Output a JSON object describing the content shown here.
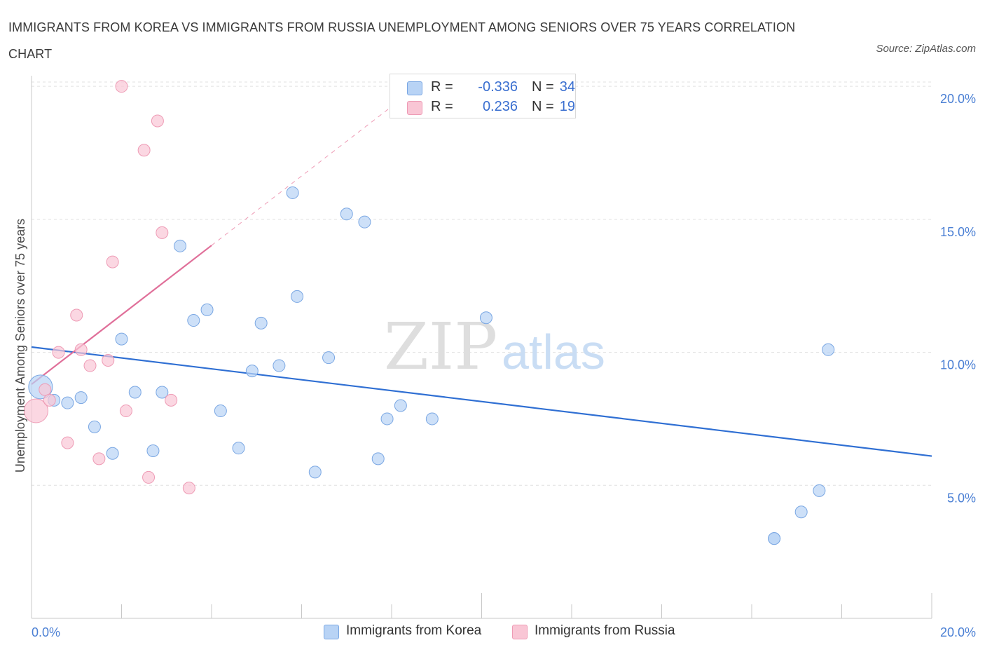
{
  "title": "IMMIGRANTS FROM KOREA VS IMMIGRANTS FROM RUSSIA UNEMPLOYMENT AMONG SENIORS OVER 75 YEARS CORRELATION CHART",
  "source": "Source: ZipAtlas.com",
  "watermark": {
    "zip": "ZIP",
    "atlas": "atlas"
  },
  "legend": {
    "korea": {
      "r_label": "R =",
      "r_value": "-0.336",
      "n_label": "N =",
      "n_value": "34"
    },
    "russia": {
      "r_label": "R =",
      "r_value": "0.236",
      "n_label": "N =",
      "n_value": "19"
    }
  },
  "colors": {
    "korea_fill": "#b8d3f5",
    "korea_stroke": "#7aa7e3",
    "korea_line": "#2f6fd3",
    "russia_fill": "#f9c6d5",
    "russia_stroke": "#ee9bb5",
    "russia_line": "#e0709a",
    "grid": "#e0e0e0",
    "tick_text": "#4a7fd4"
  },
  "chart_data": {
    "type": "scatter",
    "title": "IMMIGRANTS FROM KOREA VS IMMIGRANTS FROM RUSSIA UNEMPLOYMENT AMONG SENIORS OVER 75 YEARS CORRELATION CHART",
    "xlabel": "",
    "ylabel": "Unemployment Among Seniors over 75 years",
    "xlim": [
      0,
      20
    ],
    "ylim": [
      0,
      20.4
    ],
    "x_tick_labels": [
      "0.0%",
      "20.0%"
    ],
    "y_ticks": [
      5,
      10,
      15,
      20
    ],
    "y_tick_labels": [
      "5.0%",
      "10.0%",
      "15.0%",
      "20.0%"
    ],
    "grid": true,
    "legend_position": "bottom-center",
    "series": [
      {
        "name": "Immigrants from Korea",
        "r": -0.336,
        "n": 34,
        "trend": {
          "x0": 0.0,
          "y0": 10.2,
          "x1": 20.0,
          "y1": 6.1,
          "solid_to": 20.0
        },
        "points": [
          {
            "x": 0.2,
            "y": 8.7,
            "s": "large"
          },
          {
            "x": 0.5,
            "y": 8.2
          },
          {
            "x": 0.8,
            "y": 8.1
          },
          {
            "x": 1.1,
            "y": 8.3
          },
          {
            "x": 1.4,
            "y": 7.2
          },
          {
            "x": 1.8,
            "y": 6.2
          },
          {
            "x": 2.0,
            "y": 10.5
          },
          {
            "x": 2.3,
            "y": 8.5
          },
          {
            "x": 2.7,
            "y": 6.3
          },
          {
            "x": 2.9,
            "y": 8.5
          },
          {
            "x": 3.3,
            "y": 14.0
          },
          {
            "x": 3.6,
            "y": 11.2
          },
          {
            "x": 3.9,
            "y": 11.6
          },
          {
            "x": 4.2,
            "y": 7.8
          },
          {
            "x": 4.6,
            "y": 6.4
          },
          {
            "x": 4.9,
            "y": 9.3
          },
          {
            "x": 5.1,
            "y": 11.1
          },
          {
            "x": 5.5,
            "y": 9.5
          },
          {
            "x": 5.8,
            "y": 16.0
          },
          {
            "x": 5.9,
            "y": 12.1
          },
          {
            "x": 6.3,
            "y": 5.5
          },
          {
            "x": 6.6,
            "y": 9.8
          },
          {
            "x": 7.0,
            "y": 15.2
          },
          {
            "x": 7.4,
            "y": 14.9
          },
          {
            "x": 7.7,
            "y": 6.0
          },
          {
            "x": 7.9,
            "y": 7.5
          },
          {
            "x": 8.2,
            "y": 8.0
          },
          {
            "x": 8.9,
            "y": 7.5
          },
          {
            "x": 10.1,
            "y": 11.3
          },
          {
            "x": 16.5,
            "y": 3.0
          },
          {
            "x": 16.5,
            "y": 3.0
          },
          {
            "x": 17.1,
            "y": 4.0
          },
          {
            "x": 17.5,
            "y": 4.8
          },
          {
            "x": 17.7,
            "y": 10.1
          }
        ]
      },
      {
        "name": "Immigrants from Russia",
        "r": 0.236,
        "n": 19,
        "trend": {
          "x0": 0.0,
          "y0": 8.8,
          "x1": 20.0,
          "y1": 34.9,
          "solid_to": 4.0
        },
        "points": [
          {
            "x": 0.1,
            "y": 7.8,
            "s": "large"
          },
          {
            "x": 0.3,
            "y": 8.6
          },
          {
            "x": 0.4,
            "y": 8.2
          },
          {
            "x": 0.6,
            "y": 10.0
          },
          {
            "x": 0.8,
            "y": 6.6
          },
          {
            "x": 1.0,
            "y": 11.4
          },
          {
            "x": 1.1,
            "y": 10.1
          },
          {
            "x": 1.3,
            "y": 9.5
          },
          {
            "x": 1.5,
            "y": 6.0
          },
          {
            "x": 1.7,
            "y": 9.7
          },
          {
            "x": 1.8,
            "y": 13.4
          },
          {
            "x": 2.0,
            "y": 20.0
          },
          {
            "x": 2.1,
            "y": 7.8
          },
          {
            "x": 2.5,
            "y": 17.6
          },
          {
            "x": 2.6,
            "y": 5.3
          },
          {
            "x": 2.8,
            "y": 18.7
          },
          {
            "x": 2.9,
            "y": 14.5
          },
          {
            "x": 3.1,
            "y": 8.2
          },
          {
            "x": 3.5,
            "y": 4.9
          }
        ]
      }
    ]
  }
}
